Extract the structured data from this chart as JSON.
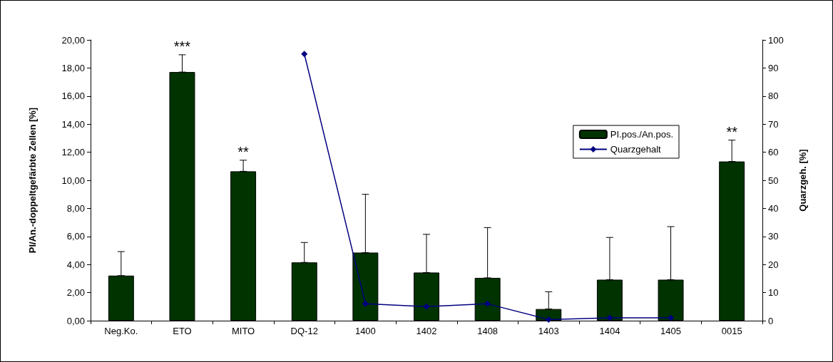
{
  "chart_data": {
    "type": "bar",
    "categories": [
      "Neg.Ko.",
      "ETO",
      "MITO",
      "DQ-12",
      "1400",
      "1402",
      "1408",
      "1403",
      "1404",
      "1405",
      "0015"
    ],
    "series": [
      {
        "name": "PI.pos./An.pos.",
        "color": "#003300",
        "values": [
          3.21,
          17.71,
          10.64,
          4.15,
          4.85,
          3.43,
          3.05,
          0.83,
          2.92,
          2.92,
          11.34
        ],
        "errors": [
          [
            3.21,
            4.92
          ],
          [
            17.71,
            18.94
          ],
          [
            10.64,
            11.43
          ],
          [
            4.15,
            5.57
          ],
          [
            4.85,
            9.0
          ],
          [
            3.43,
            6.15
          ],
          [
            3.05,
            6.63
          ],
          [
            0.83,
            2.06
          ],
          [
            2.92,
            5.93
          ],
          [
            2.92,
            6.7
          ],
          [
            11.34,
            12.86
          ]
        ]
      },
      {
        "name": "Quarzgehalt",
        "type": "line",
        "axis": "y2",
        "color": "#000080",
        "marker": "diamond",
        "values": [
          null,
          null,
          null,
          95,
          6,
          5,
          6,
          0.4,
          1,
          1,
          null
        ]
      }
    ],
    "ylabel": "PI/An.-doppeltgefärbte Zellen [%]",
    "y2label": "Quarzgeh. [%]",
    "ylim": [
      0,
      20
    ],
    "yticks": [
      {
        "value": 0,
        "label": "0,00"
      },
      {
        "value": 2,
        "label": "2,00"
      },
      {
        "value": 4,
        "label": "4,00"
      },
      {
        "value": 6,
        "label": "6,00"
      },
      {
        "value": 8,
        "label": "8,00"
      },
      {
        "value": 10,
        "label": "10,00"
      },
      {
        "value": 12,
        "label": "12,00"
      },
      {
        "value": 14,
        "label": "14,00"
      },
      {
        "value": 16,
        "label": "16,00"
      },
      {
        "value": 18,
        "label": "18,00"
      },
      {
        "value": 20,
        "label": "20,00"
      }
    ],
    "y2lim": [
      0,
      100
    ],
    "y2ticks": [
      0,
      10,
      20,
      30,
      40,
      50,
      60,
      70,
      80,
      90,
      100
    ],
    "annotations": [
      "***",
      "**",
      "**"
    ],
    "legend": "right",
    "grid": false
  }
}
